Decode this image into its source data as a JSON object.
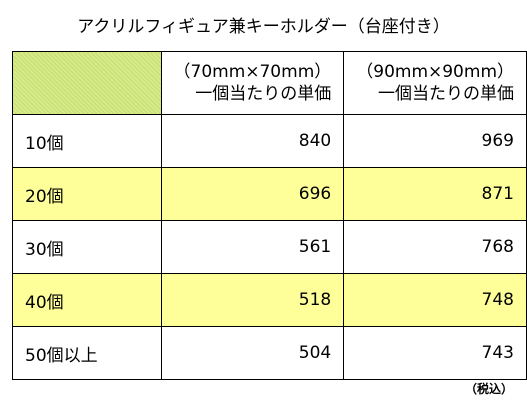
{
  "title": "アクリルフィギュア兼キーホルダー（台座付き）",
  "table": {
    "columns": [
      {
        "size": "（70mm×70mm）",
        "label": "一個当たりの単価"
      },
      {
        "size": "（90mm×90mm）",
        "label": "一個当たりの単価"
      }
    ],
    "rows": [
      [
        "10個",
        840,
        969
      ],
      [
        "20個",
        696,
        871
      ],
      [
        "30個",
        561,
        768
      ],
      [
        "40個",
        518,
        748
      ],
      [
        "50個以上",
        504,
        743
      ]
    ]
  },
  "note": "（税込）"
}
